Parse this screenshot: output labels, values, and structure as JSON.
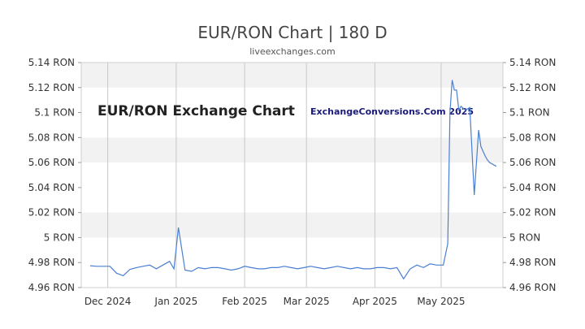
{
  "colors": {
    "line": "#4a7fd4",
    "band": "#f2f2f2",
    "grid": "#c8c8c8",
    "axis": "#999999"
  },
  "chart_data": {
    "type": "line",
    "title": "EUR/RON Chart | 180 D",
    "subtitle": "liveexchanges.com",
    "watermarks": [
      "EUR/RON Exchange Chart",
      "ExchangeConversions.Com 2025"
    ],
    "xlabel": "",
    "ylabel": "",
    "grid": true,
    "ylim": [
      4.96,
      5.14
    ],
    "y_ticks": [
      4.96,
      4.98,
      5.0,
      5.02,
      5.04,
      5.06,
      5.08,
      5.1,
      5.12,
      5.14
    ],
    "y_tick_labels": [
      "4.96 RON",
      "4.98 RON",
      "5 RON",
      "5.02 RON",
      "5.04 RON",
      "5.06 RON",
      "5.08 RON",
      "5.1 RON",
      "5.12 RON",
      "5.14 RON"
    ],
    "xlim": [
      "2024-11-19",
      "2025-05-29"
    ],
    "x_ticks": [
      "2024-12-01",
      "2025-01-01",
      "2025-02-01",
      "2025-03-01",
      "2025-04-01",
      "2025-05-01"
    ],
    "x_tick_labels": [
      "Dec 2024",
      "Jan 2025",
      "Feb 2025",
      "Mar 2025",
      "Apr 2025",
      "May 2025"
    ],
    "series": [
      {
        "x": [
          "2024-11-23",
          "2024-11-26",
          "2024-11-29",
          "2024-12-02",
          "2024-12-05",
          "2024-12-08",
          "2024-12-11",
          "2024-12-14",
          "2024-12-17",
          "2024-12-20",
          "2024-12-23",
          "2024-12-26",
          "2024-12-29",
          "2024-12-31",
          "2025-01-01",
          "2025-01-02",
          "2025-01-05",
          "2025-01-08",
          "2025-01-11",
          "2025-01-14",
          "2025-01-17",
          "2025-01-20",
          "2025-01-23",
          "2025-01-26",
          "2025-01-29",
          "2025-02-01",
          "2025-02-04",
          "2025-02-07",
          "2025-02-10",
          "2025-02-13",
          "2025-02-16",
          "2025-02-19",
          "2025-02-22",
          "2025-02-25",
          "2025-02-28",
          "2025-03-03",
          "2025-03-06",
          "2025-03-09",
          "2025-03-12",
          "2025-03-15",
          "2025-03-18",
          "2025-03-21",
          "2025-03-24",
          "2025-03-27",
          "2025-03-30",
          "2025-04-02",
          "2025-04-05",
          "2025-04-08",
          "2025-04-11",
          "2025-04-14",
          "2025-04-17",
          "2025-04-20",
          "2025-04-23",
          "2025-04-26",
          "2025-04-29",
          "2025-05-02",
          "2025-05-04",
          "2025-05-05",
          "2025-05-06",
          "2025-05-07",
          "2025-05-08",
          "2025-05-09",
          "2025-05-10",
          "2025-05-12",
          "2025-05-14",
          "2025-05-16",
          "2025-05-18",
          "2025-05-19",
          "2025-05-20",
          "2025-05-21",
          "2025-05-22",
          "2025-05-23",
          "2025-05-25",
          "2025-05-26"
        ],
        "values": [
          4.9775,
          4.977,
          4.977,
          4.977,
          4.9715,
          4.9695,
          4.9745,
          4.976,
          4.977,
          4.978,
          4.975,
          4.978,
          4.981,
          4.975,
          4.991,
          5.008,
          4.974,
          4.973,
          4.976,
          4.975,
          4.976,
          4.976,
          4.975,
          4.974,
          4.975,
          4.977,
          4.976,
          4.975,
          4.975,
          4.976,
          4.976,
          4.977,
          4.976,
          4.975,
          4.976,
          4.977,
          4.976,
          4.975,
          4.976,
          4.977,
          4.976,
          4.975,
          4.976,
          4.975,
          4.975,
          4.976,
          4.976,
          4.975,
          4.976,
          4.967,
          4.975,
          4.978,
          4.976,
          4.979,
          4.978,
          4.978,
          4.995,
          5.1,
          5.126,
          5.118,
          5.118,
          5.102,
          5.105,
          5.102,
          5.104,
          5.034,
          5.086,
          5.073,
          5.069,
          5.065,
          5.062,
          5.06,
          5.058,
          5.057
        ]
      }
    ]
  }
}
